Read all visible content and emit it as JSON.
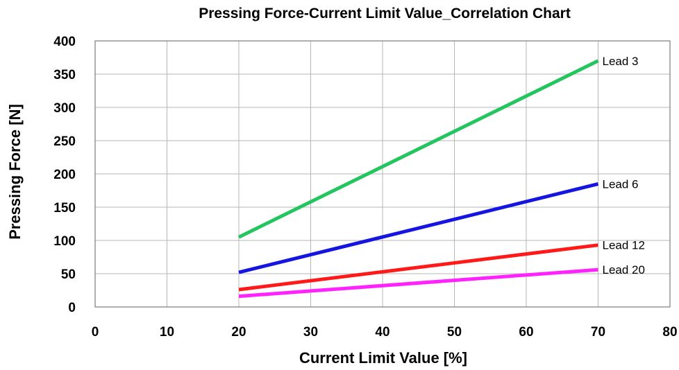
{
  "chart_data": {
    "type": "line",
    "title": "Pressing Force-Current Limit Value_Correlation Chart",
    "xlabel": "Current Limit Value [%]",
    "ylabel": "Pressing Force [N]",
    "xlim": [
      0,
      80
    ],
    "ylim": [
      0,
      400
    ],
    "xticks": [
      0,
      10,
      20,
      30,
      40,
      50,
      60,
      70,
      80
    ],
    "yticks": [
      0,
      50,
      100,
      150,
      200,
      250,
      300,
      350,
      400
    ],
    "grid": true,
    "series": [
      {
        "name": "Lead 3",
        "color": "#22c55e",
        "points": [
          [
            20,
            105
          ],
          [
            70,
            370
          ]
        ]
      },
      {
        "name": "Lead 6",
        "color": "#1515e0",
        "points": [
          [
            20,
            52
          ],
          [
            70,
            185
          ]
        ]
      },
      {
        "name": "Lead 12",
        "color": "#ff1a1a",
        "points": [
          [
            20,
            26
          ],
          [
            70,
            93
          ]
        ]
      },
      {
        "name": "Lead 20",
        "color": "#ff22ff",
        "points": [
          [
            20,
            16
          ],
          [
            70,
            56
          ]
        ]
      }
    ]
  }
}
